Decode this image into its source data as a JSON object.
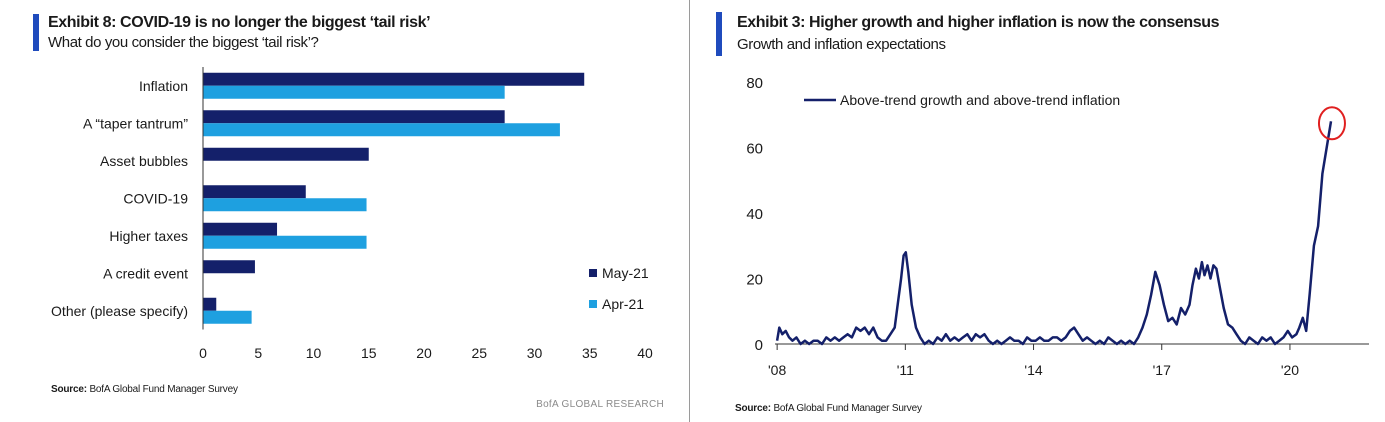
{
  "colors": {
    "navy": "#14206a",
    "light_blue": "#1ea0e0",
    "accent": "#1f4bbd",
    "highlight": "#e02020"
  },
  "left": {
    "title": "Exhibit 8: COVID-19 is no longer the biggest ‘tail risk’",
    "subtitle": "What do you consider the biggest ‘tail risk’?",
    "source_label": "Source:",
    "source_text": "BofA Global Fund Manager Survey",
    "brand": "BofA GLOBAL RESEARCH"
  },
  "right": {
    "title": "Exhibit 3: Higher growth and higher inflation is now the consensus",
    "subtitle": "Growth and inflation expectations",
    "source_label": "Source:",
    "source_text": "BofA Global Fund Manager Survey"
  },
  "chart_data": [
    {
      "type": "bar",
      "orientation": "horizontal",
      "categories": [
        "Inflation",
        "A “taper tantrum”",
        "Asset bubbles",
        "COVID-19",
        "Higher taxes",
        "A credit event",
        "Other (please specify)"
      ],
      "series": [
        {
          "name": "May-21",
          "color": "#14206a",
          "values": [
            34.5,
            27.3,
            15,
            9.3,
            6.7,
            4.7,
            1.2
          ]
        },
        {
          "name": "Apr-21",
          "color": "#1ea0e0",
          "values": [
            27.3,
            32.3,
            null,
            14.8,
            14.8,
            null,
            4.4
          ]
        }
      ],
      "xlim": [
        0,
        40
      ],
      "xticks": [
        0,
        5,
        10,
        15,
        20,
        25,
        30,
        35,
        40
      ],
      "legend": "bottom-right",
      "grid": false
    },
    {
      "type": "line",
      "series": [
        {
          "name": "Above-trend growth and above-trend inflation",
          "color": "#14206a",
          "points": [
            [
              2008.0,
              1
            ],
            [
              2008.05,
              5
            ],
            [
              2008.12,
              3
            ],
            [
              2008.2,
              4
            ],
            [
              2008.28,
              2
            ],
            [
              2008.36,
              1
            ],
            [
              2008.45,
              2
            ],
            [
              2008.55,
              0
            ],
            [
              2008.65,
              1
            ],
            [
              2008.75,
              0
            ],
            [
              2008.85,
              1
            ],
            [
              2008.95,
              1
            ],
            [
              2009.05,
              0
            ],
            [
              2009.15,
              2
            ],
            [
              2009.25,
              1
            ],
            [
              2009.35,
              2
            ],
            [
              2009.45,
              1
            ],
            [
              2009.55,
              2
            ],
            [
              2009.65,
              3
            ],
            [
              2009.75,
              2
            ],
            [
              2009.85,
              5
            ],
            [
              2009.95,
              4
            ],
            [
              2010.05,
              5
            ],
            [
              2010.15,
              3
            ],
            [
              2010.25,
              5
            ],
            [
              2010.35,
              2
            ],
            [
              2010.45,
              1
            ],
            [
              2010.55,
              1
            ],
            [
              2010.65,
              3
            ],
            [
              2010.75,
              5
            ],
            [
              2010.83,
              13
            ],
            [
              2010.9,
              20
            ],
            [
              2010.96,
              27
            ],
            [
              2011.01,
              28
            ],
            [
              2011.07,
              22
            ],
            [
              2011.15,
              12
            ],
            [
              2011.25,
              5
            ],
            [
              2011.35,
              2
            ],
            [
              2011.45,
              0
            ],
            [
              2011.55,
              1
            ],
            [
              2011.65,
              0
            ],
            [
              2011.75,
              2
            ],
            [
              2011.85,
              1
            ],
            [
              2011.95,
              3
            ],
            [
              2012.05,
              1
            ],
            [
              2012.15,
              2
            ],
            [
              2012.25,
              1
            ],
            [
              2012.35,
              2
            ],
            [
              2012.45,
              3
            ],
            [
              2012.55,
              1
            ],
            [
              2012.65,
              3
            ],
            [
              2012.75,
              2
            ],
            [
              2012.85,
              3
            ],
            [
              2012.95,
              1
            ],
            [
              2013.05,
              0
            ],
            [
              2013.15,
              1
            ],
            [
              2013.25,
              0
            ],
            [
              2013.35,
              1
            ],
            [
              2013.45,
              2
            ],
            [
              2013.55,
              1
            ],
            [
              2013.65,
              1
            ],
            [
              2013.75,
              0
            ],
            [
              2013.85,
              2
            ],
            [
              2013.95,
              1
            ],
            [
              2014.05,
              1
            ],
            [
              2014.15,
              2
            ],
            [
              2014.25,
              1
            ],
            [
              2014.35,
              1
            ],
            [
              2014.45,
              2
            ],
            [
              2014.55,
              2
            ],
            [
              2014.65,
              1
            ],
            [
              2014.75,
              2
            ],
            [
              2014.85,
              4
            ],
            [
              2014.95,
              5
            ],
            [
              2015.05,
              3
            ],
            [
              2015.15,
              1
            ],
            [
              2015.25,
              2
            ],
            [
              2015.35,
              1
            ],
            [
              2015.45,
              0
            ],
            [
              2015.55,
              1
            ],
            [
              2015.65,
              0
            ],
            [
              2015.75,
              2
            ],
            [
              2015.85,
              1
            ],
            [
              2015.95,
              0
            ],
            [
              2016.05,
              1
            ],
            [
              2016.15,
              0
            ],
            [
              2016.25,
              1
            ],
            [
              2016.35,
              0
            ],
            [
              2016.45,
              2
            ],
            [
              2016.55,
              5
            ],
            [
              2016.65,
              9
            ],
            [
              2016.75,
              15
            ],
            [
              2016.85,
              22
            ],
            [
              2016.95,
              18
            ],
            [
              2017.05,
              12
            ],
            [
              2017.15,
              7
            ],
            [
              2017.25,
              8
            ],
            [
              2017.35,
              6
            ],
            [
              2017.45,
              11
            ],
            [
              2017.55,
              9
            ],
            [
              2017.65,
              12
            ],
            [
              2017.72,
              18
            ],
            [
              2017.8,
              23
            ],
            [
              2017.87,
              20
            ],
            [
              2017.94,
              25
            ],
            [
              2018.0,
              21
            ],
            [
              2018.07,
              24
            ],
            [
              2018.14,
              20
            ],
            [
              2018.21,
              24
            ],
            [
              2018.28,
              23
            ],
            [
              2018.35,
              18
            ],
            [
              2018.45,
              11
            ],
            [
              2018.55,
              6
            ],
            [
              2018.65,
              5
            ],
            [
              2018.75,
              3
            ],
            [
              2018.85,
              1
            ],
            [
              2018.95,
              0
            ],
            [
              2019.05,
              2
            ],
            [
              2019.15,
              1
            ],
            [
              2019.25,
              0
            ],
            [
              2019.35,
              2
            ],
            [
              2019.45,
              1
            ],
            [
              2019.55,
              2
            ],
            [
              2019.65,
              0
            ],
            [
              2019.75,
              1
            ],
            [
              2019.85,
              2
            ],
            [
              2019.95,
              4
            ],
            [
              2020.05,
              2
            ],
            [
              2020.15,
              3
            ],
            [
              2020.22,
              5
            ],
            [
              2020.3,
              8
            ],
            [
              2020.38,
              4
            ],
            [
              2020.46,
              15
            ],
            [
              2020.56,
              30
            ],
            [
              2020.66,
              36
            ],
            [
              2020.76,
              52
            ],
            [
              2020.86,
              60
            ],
            [
              2020.96,
              68
            ]
          ]
        }
      ],
      "xticks": [
        "'08",
        "'11",
        "'14",
        "'17",
        "'20"
      ],
      "xtick_values": [
        2008,
        2011,
        2014,
        2017,
        2020
      ],
      "xlim": [
        2007.95,
        2021.85
      ],
      "yticks": [
        0,
        20,
        40,
        60,
        80
      ],
      "ylim": [
        0,
        80
      ],
      "legend": "top-left",
      "grid": false,
      "annotation": "red circle around latest reading"
    }
  ]
}
